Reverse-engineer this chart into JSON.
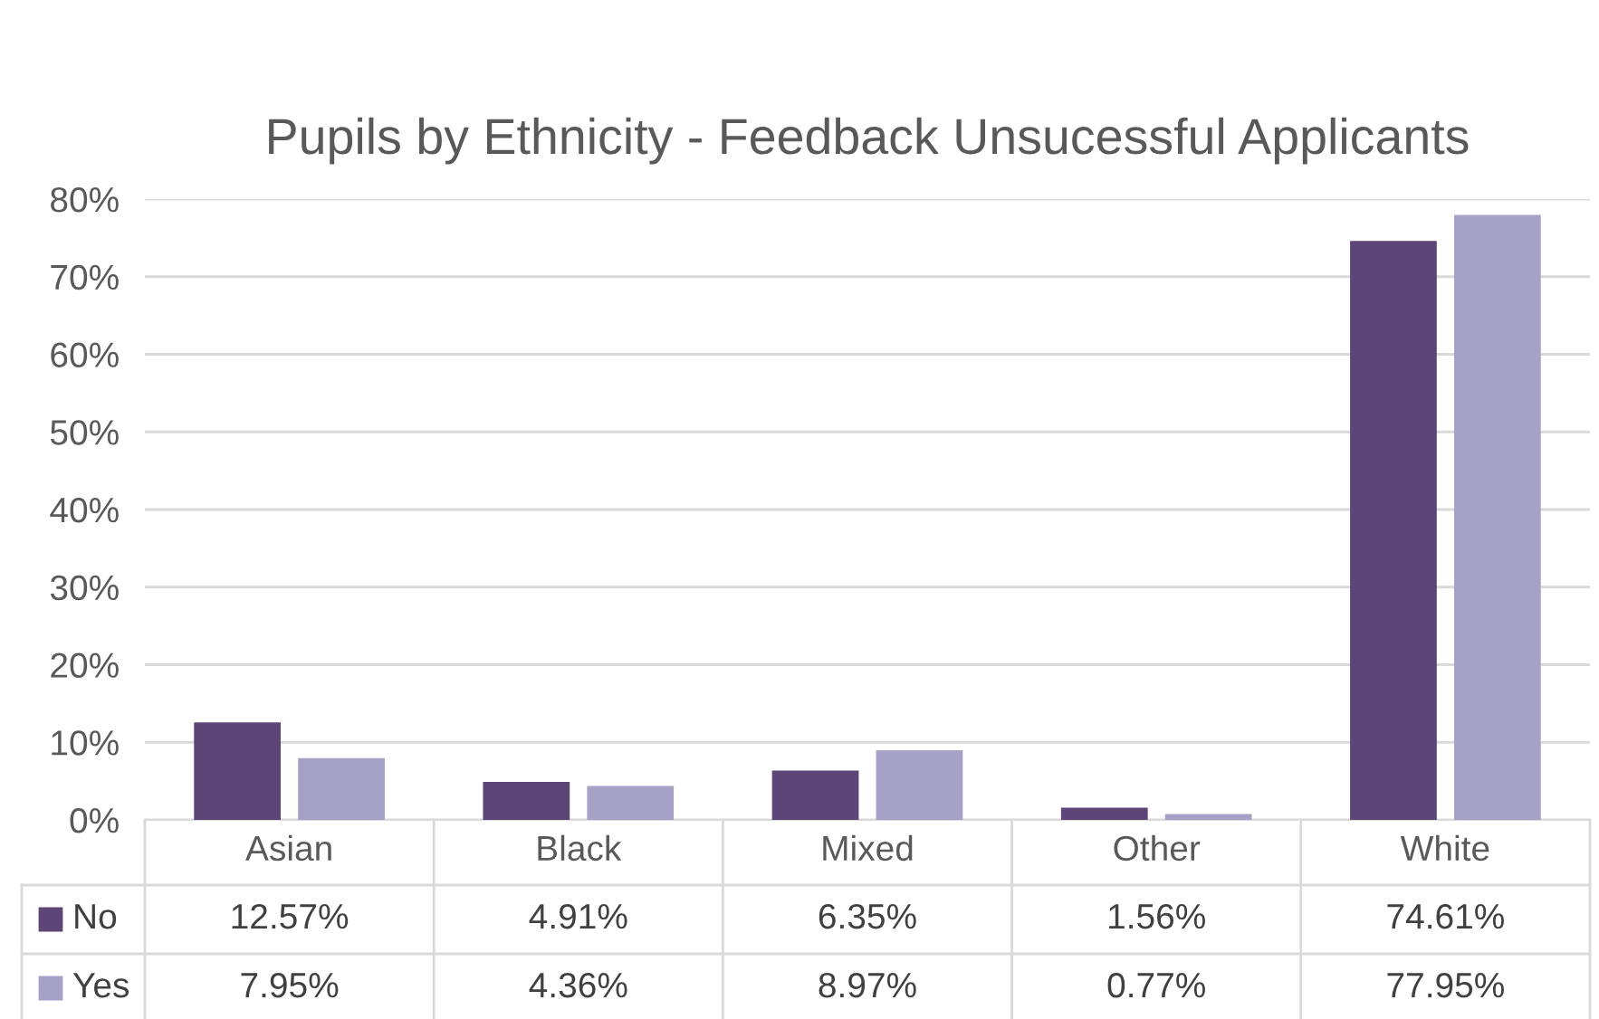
{
  "chart_data": {
    "type": "bar",
    "title": "Pupils by Ethnicity - Feedback Unsucessful Applicants",
    "categories": [
      "Asian",
      "Black",
      "Mixed",
      "Other",
      "White"
    ],
    "series": [
      {
        "name": "No",
        "color": "#5d4677",
        "values": [
          12.57,
          4.91,
          6.35,
          1.56,
          74.61
        ],
        "value_labels": [
          "12.57%",
          "4.91%",
          "6.35%",
          "1.56%",
          "74.61%"
        ]
      },
      {
        "name": "Yes",
        "color": "#a6a1c6",
        "values": [
          7.95,
          4.36,
          8.97,
          0.77,
          77.95
        ],
        "value_labels": [
          "7.95%",
          "4.36%",
          "8.97%",
          "0.77%",
          "77.95%"
        ]
      }
    ],
    "ylim": [
      0,
      80
    ],
    "yticks": [
      {
        "value": 0,
        "label": "0%"
      },
      {
        "value": 10,
        "label": "10%"
      },
      {
        "value": 20,
        "label": "20%"
      },
      {
        "value": 30,
        "label": "30%"
      },
      {
        "value": 40,
        "label": "40%"
      },
      {
        "value": 50,
        "label": "50%"
      },
      {
        "value": 60,
        "label": "60%"
      },
      {
        "value": 70,
        "label": "70%"
      },
      {
        "value": 80,
        "label": "80%"
      }
    ],
    "grid": "y",
    "legend": "bottom"
  }
}
